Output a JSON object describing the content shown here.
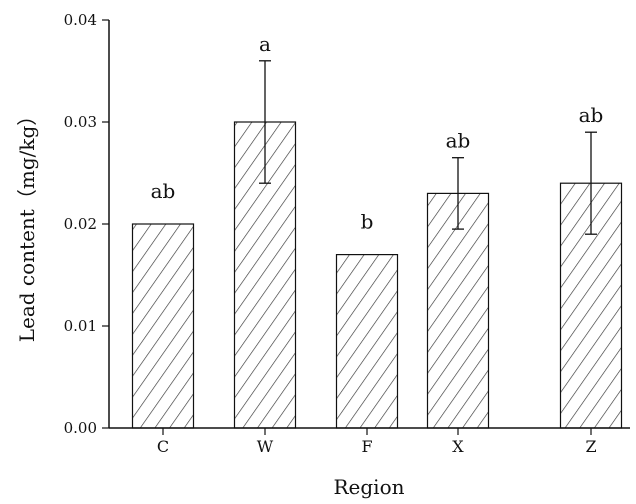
{
  "chart_data": {
    "type": "bar",
    "title": "",
    "xlabel": "Region",
    "ylabel": "Lead content（mg/kg）",
    "categories": [
      "C",
      "W",
      "F",
      "X",
      "Z"
    ],
    "values": [
      0.02,
      0.03,
      0.017,
      0.023,
      0.024
    ],
    "error": [
      0.0,
      0.006,
      0.0,
      0.0035,
      0.005
    ],
    "significance": [
      "ab",
      "a",
      "b",
      "ab",
      "ab"
    ],
    "ylim": [
      0,
      0.04
    ],
    "yticks": [
      "0.00",
      "0.01",
      "0.02",
      "0.03",
      "0.04"
    ],
    "grid": false,
    "legend": "none",
    "colors": {
      "axis": "#111111",
      "bar_edge": "#111111",
      "bar_fill": "#ffffff",
      "hatch": "#333333"
    }
  }
}
